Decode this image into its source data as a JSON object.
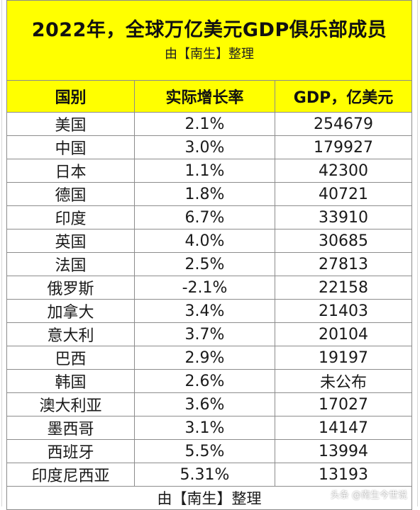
{
  "title": "2022年，全球万亿美元GDP俱乐部成员",
  "subtitle": "由【南生】整理",
  "columns": [
    "国别",
    "实际增长率",
    "GDP，亿美元"
  ],
  "rows": [
    [
      "美国",
      "2.1%",
      "254679"
    ],
    [
      "中国",
      "3.0%",
      "179927"
    ],
    [
      "日本",
      "1.1%",
      "42300"
    ],
    [
      "德国",
      "1.8%",
      "40721"
    ],
    [
      "印度",
      "6.7%",
      "33910"
    ],
    [
      "英国",
      "4.0%",
      "30685"
    ],
    [
      "法国",
      "2.5%",
      "27813"
    ],
    [
      "俄罗斯",
      "-2.1%",
      "22158"
    ],
    [
      "加拿大",
      "3.4%",
      "21403"
    ],
    [
      "意大利",
      "3.7%",
      "20104"
    ],
    [
      "巴西",
      "2.9%",
      "19197"
    ],
    [
      "韩国",
      "2.6%",
      "未公布"
    ],
    [
      "澳大利亚",
      "3.6%",
      "17027"
    ],
    [
      "墨西哥",
      "3.1%",
      "14147"
    ],
    [
      "西班牙",
      "5.5%",
      "13994"
    ],
    [
      "印度尼西亚",
      "5.31%",
      "13193"
    ]
  ],
  "footer": "由【南生】整理",
  "watermark": "头条 @南生今世说",
  "colors": {
    "header_fill": "#ffff00",
    "border": "#8c8c8c",
    "text": "#1a1a1a"
  }
}
